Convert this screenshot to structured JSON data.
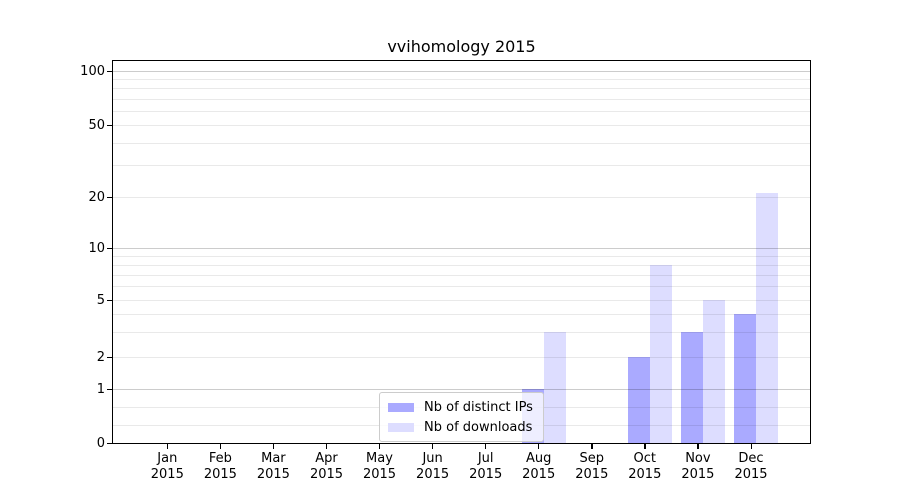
{
  "title": "vvihomology 2015",
  "year_label": "2015",
  "months": [
    "Jan",
    "Feb",
    "Mar",
    "Apr",
    "May",
    "Jun",
    "Jul",
    "Aug",
    "Sep",
    "Oct",
    "Nov",
    "Dec"
  ],
  "legend": {
    "items": [
      {
        "label": "Nb of distinct IPs",
        "color": "#aaaaff"
      },
      {
        "label": "Nb of downloads",
        "color": "#ddddff"
      }
    ]
  },
  "colors": {
    "distinct_ips_bar": "#aaaaff",
    "downloads_bar": "#ddddff",
    "legend_border": "#cccccc",
    "axis": "#000000"
  },
  "y_axis": {
    "tick_labels": [
      "0",
      "1",
      "2",
      "5",
      "10",
      "20",
      "50",
      "100"
    ]
  },
  "chart_data": {
    "type": "bar",
    "title": "vvihomology 2015",
    "categories": [
      "Jan 2015",
      "Feb 2015",
      "Mar 2015",
      "Apr 2015",
      "May 2015",
      "Jun 2015",
      "Jul 2015",
      "Aug 2015",
      "Sep 2015",
      "Oct 2015",
      "Nov 2015",
      "Dec 2015"
    ],
    "series": [
      {
        "name": "Nb of distinct IPs",
        "color": "#aaaaff",
        "values": [
          null,
          null,
          null,
          null,
          null,
          null,
          null,
          1,
          null,
          2,
          3,
          4
        ]
      },
      {
        "name": "Nb of downloads",
        "color": "#ddddff",
        "values": [
          null,
          null,
          null,
          null,
          null,
          null,
          null,
          3,
          null,
          8,
          5,
          21
        ]
      }
    ],
    "yscale": "symlog",
    "yticks": [
      0,
      1,
      2,
      5,
      10,
      20,
      50,
      100
    ],
    "major_grid_values": [
      1,
      10,
      100
    ],
    "minor_grid_values": [
      0.333,
      0.667,
      3,
      4,
      6,
      7,
      8,
      9,
      30,
      40,
      60,
      70,
      80,
      90
    ],
    "grid": true,
    "legend_position": "lower center"
  }
}
